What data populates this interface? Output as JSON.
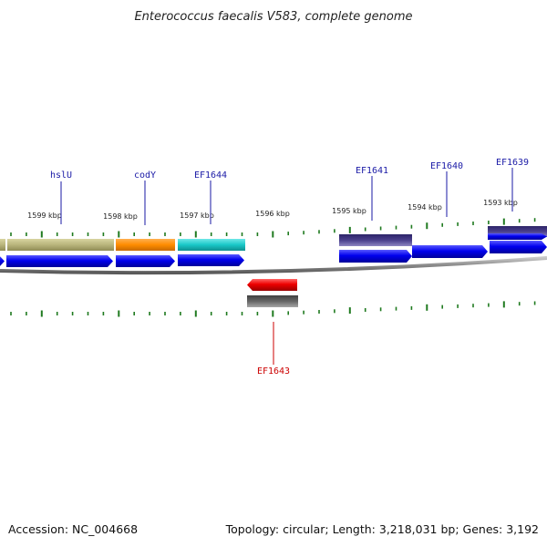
{
  "title": "Enterococcus faecalis V583, complete genome",
  "footer": {
    "accession": "Accession: NC_004668",
    "summary": "Topology: circular; Length: 3,218,031 bp; Genes: 3,192"
  },
  "ruler_labels": [
    "1599 kbp",
    "1598 kbp",
    "1597 kbp",
    "1596 kbp",
    "1595 kbp",
    "1594 kbp",
    "1593 kbp"
  ],
  "gene_labels": [
    "hslU",
    "codY",
    "EF1644",
    "EF1643",
    "EF1641",
    "EF1640",
    "EF1639"
  ],
  "colors": {
    "forward_gene": "#0000ee",
    "reverse_gene": "#ee0000",
    "label_forward": "#1a1aa6",
    "label_reverse": "#cc0000",
    "tick": "#1f7a1f",
    "backbone": "#8a8a8a",
    "feature_khaki": "#b9b57c",
    "feature_orange": "#ff8c00",
    "feature_cyan": "#19c8c8",
    "feature_slate": "#4a3f8c",
    "feature_gray": "#666666"
  }
}
